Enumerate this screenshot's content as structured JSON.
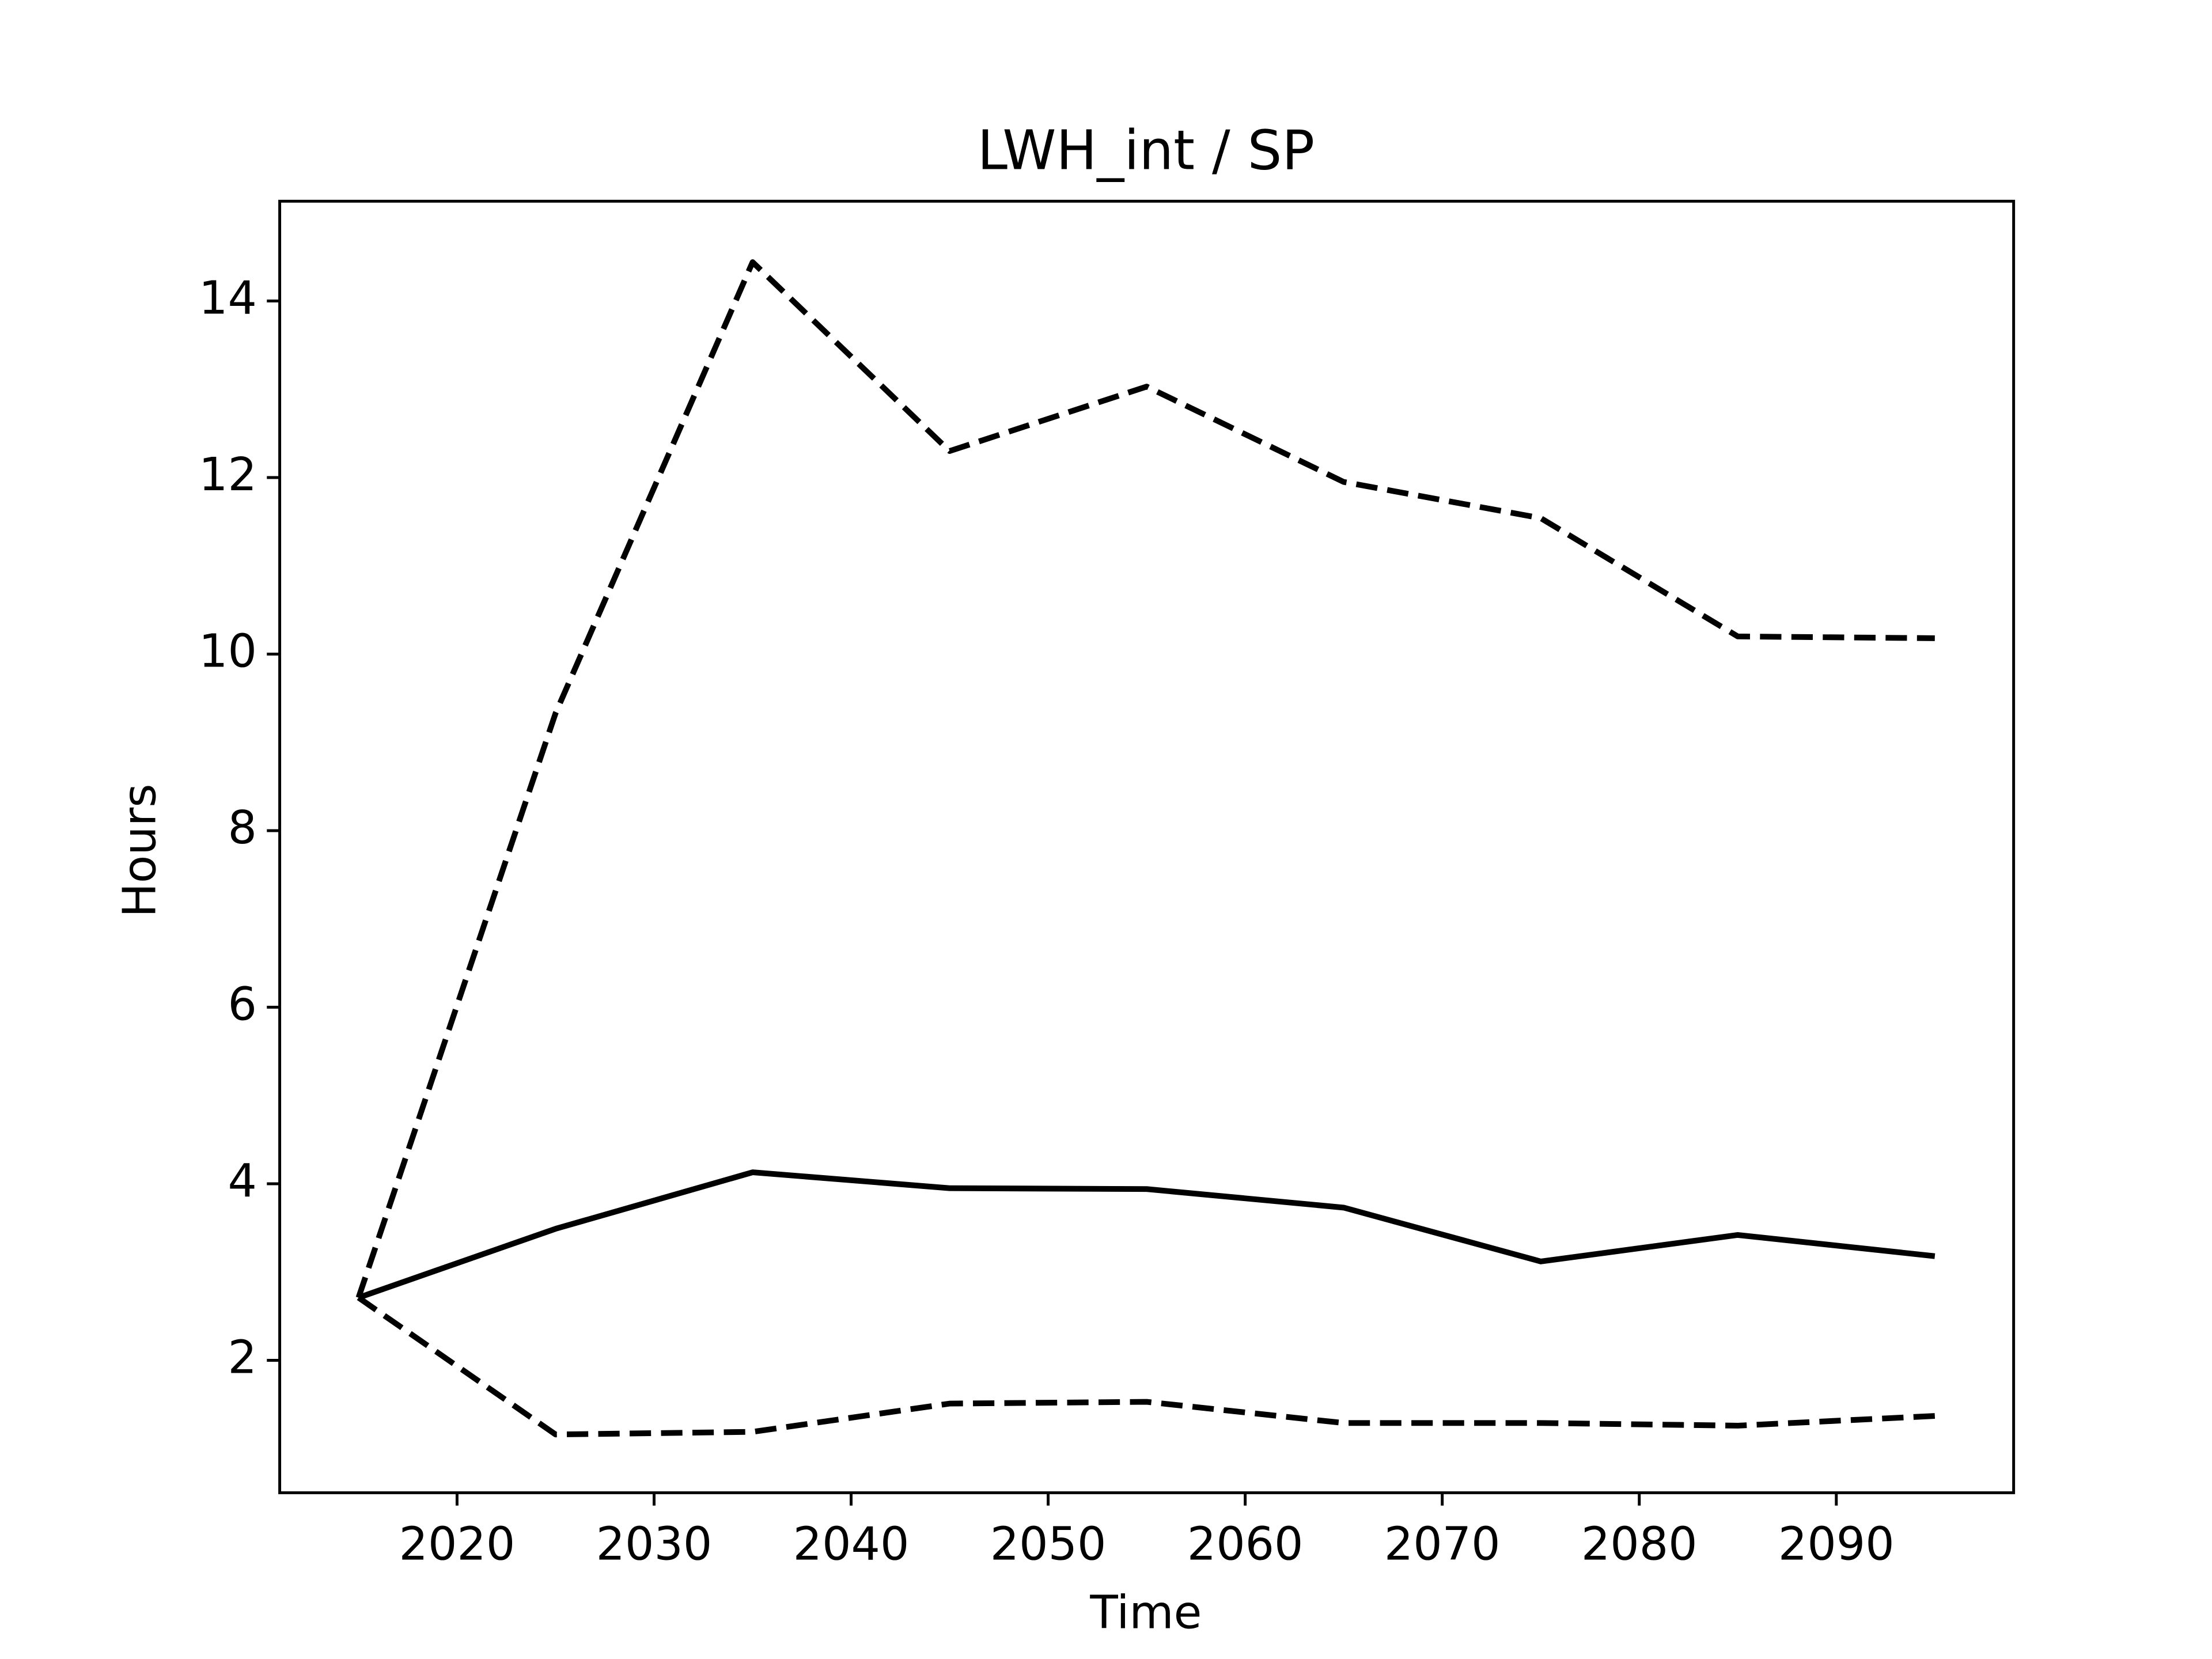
{
  "chart_data": {
    "type": "line",
    "title": "LWH_int / SP",
    "xlabel": "Time",
    "ylabel": "Hours",
    "x": [
      2015,
      2025,
      2035,
      2045,
      2055,
      2065,
      2075,
      2085,
      2095
    ],
    "series": [
      {
        "color": "#000000",
        "style": "solid",
        "values": [
          2.71,
          3.49,
          4.13,
          3.95,
          3.94,
          3.73,
          3.12,
          3.42,
          3.18
        ]
      },
      {
        "color": "#000000",
        "style": "dashed",
        "values": [
          2.71,
          9.33,
          14.44,
          12.3,
          13.03,
          11.95,
          11.54,
          10.2,
          10.18
        ]
      },
      {
        "color": "#000000",
        "style": "dashed",
        "values": [
          2.71,
          1.16,
          1.19,
          1.51,
          1.53,
          1.29,
          1.29,
          1.26,
          1.37
        ]
      }
    ],
    "xlim": [
      2011,
      2099
    ],
    "xticks": [
      2020,
      2030,
      2040,
      2050,
      2060,
      2070,
      2080,
      2090
    ],
    "ylim": [
      0.5,
      15.13
    ],
    "yticks": [
      2,
      4,
      6,
      8,
      10,
      12,
      14
    ],
    "grid": false
  }
}
